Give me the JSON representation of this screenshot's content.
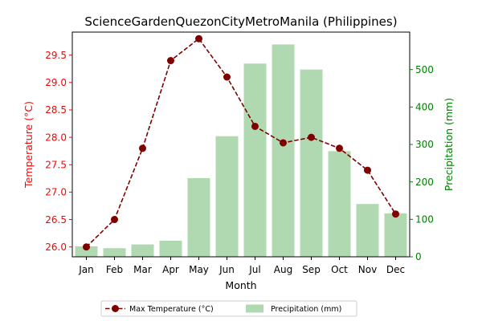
{
  "chart_data": {
    "type": "bar",
    "title": "ScienceGardenQuezonCityMetroManila (Philippines)",
    "xlabel": "Month",
    "ylabel_left": "Temperature (°C)",
    "ylabel_right": "Precipitation (mm)",
    "categories": [
      "Jan",
      "Feb",
      "Mar",
      "Apr",
      "May",
      "Jun",
      "Jul",
      "Aug",
      "Sep",
      "Oct",
      "Nov",
      "Dec"
    ],
    "series": [
      {
        "name": "Max Temperature (°C)",
        "type": "line",
        "axis": "left",
        "color": "#800000",
        "values": [
          26.0,
          26.5,
          27.8,
          29.4,
          29.8,
          29.1,
          28.2,
          27.9,
          28.0,
          27.8,
          27.4,
          26.6
        ]
      },
      {
        "name": "Precipitation (mm)",
        "type": "bar",
        "axis": "right",
        "color": "#b1d9b1",
        "values": [
          28,
          23,
          33,
          43,
          210,
          322,
          516,
          567,
          500,
          282,
          141,
          116
        ]
      }
    ],
    "ylim_left": [
      25.82,
      29.92
    ],
    "ylim_right": [
      0,
      600
    ],
    "yticks_left": [
      "26.0",
      "26.5",
      "27.0",
      "27.5",
      "28.0",
      "28.5",
      "29.0",
      "29.5"
    ],
    "yticks_right": [
      "0",
      "100",
      "200",
      "300",
      "400",
      "500"
    ],
    "left_axis_color": "#ff0000",
    "right_axis_color": "#008000",
    "grid": false,
    "legend_position": "bottom-center"
  }
}
